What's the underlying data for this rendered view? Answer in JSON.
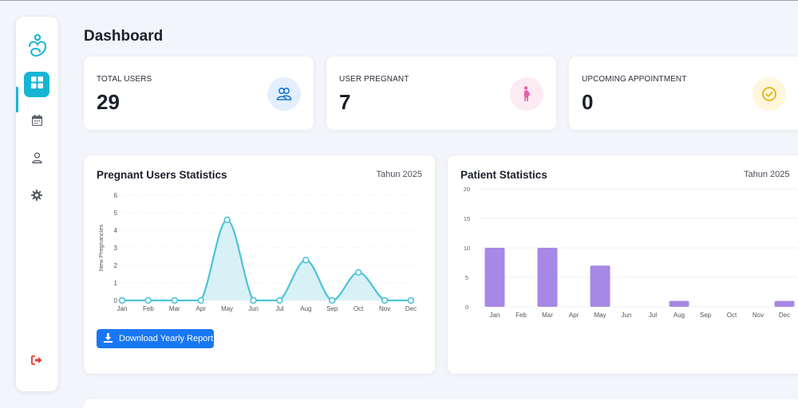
{
  "page": {
    "title": "Dashboard"
  },
  "sidebar": {
    "items": [
      {
        "name": "dashboard",
        "icon": "grid-icon",
        "active": true
      },
      {
        "name": "calendar",
        "icon": "calendar-icon",
        "active": false
      },
      {
        "name": "profile",
        "icon": "user-icon",
        "active": false
      },
      {
        "name": "settings",
        "icon": "gear-icon",
        "active": false
      },
      {
        "name": "logout",
        "icon": "logout-icon",
        "active": false
      }
    ],
    "accent": "#17b5d4",
    "logout_color": "#e53935"
  },
  "stats": [
    {
      "label": "TOTAL USERS",
      "value": "29",
      "icon": "users-icon",
      "icon_color": "#1976d2",
      "icon_bg": "#e3efff"
    },
    {
      "label": "USER PREGNANT",
      "value": "7",
      "icon": "pregnant-icon",
      "icon_color": "#ec5aa8",
      "icon_bg": "#fdebf4"
    },
    {
      "label": "UPCOMING APPOINTMENT",
      "value": "0",
      "icon": "check-circle-icon",
      "icon_color": "#e5b40b",
      "icon_bg": "#fff6dc"
    }
  ],
  "pregnant_panel": {
    "title": "Pregnant Users Statistics",
    "year": "Tahun 2025",
    "button_label": "Download Yearly Report"
  },
  "patient_panel": {
    "title": "Patient Statistics",
    "year": "Tahun 2025"
  },
  "chart_data": [
    {
      "type": "area",
      "title": "Pregnant Users Statistics",
      "xlabel": "",
      "ylabel": "New Pregnancies",
      "categories": [
        "Jan",
        "Feb",
        "Mar",
        "Apr",
        "May",
        "Jun",
        "Jul",
        "Aug",
        "Sep",
        "Oct",
        "Nov",
        "Dec"
      ],
      "values": [
        0,
        0,
        0,
        0,
        4.6,
        0,
        0,
        2.3,
        0,
        1.6,
        0,
        0
      ],
      "yticks": [
        0,
        1,
        2,
        3,
        4,
        5,
        6
      ],
      "ylim": [
        0,
        6
      ],
      "color": "#4cc3d9",
      "fill": "#d8f1f6",
      "grid": true
    },
    {
      "type": "bar",
      "title": "Patient Statistics",
      "xlabel": "",
      "ylabel": "",
      "categories": [
        "Jan",
        "Feb",
        "Mar",
        "Apr",
        "May",
        "Jun",
        "Jul",
        "Aug",
        "Sep",
        "Oct",
        "Nov",
        "Dec"
      ],
      "values": [
        10,
        0,
        10,
        0,
        7,
        0,
        0,
        1,
        0,
        0,
        0,
        1
      ],
      "yticks": [
        0,
        5,
        10,
        15,
        20
      ],
      "ylim": [
        0,
        20
      ],
      "color": "#a688e6",
      "grid": true
    }
  ]
}
